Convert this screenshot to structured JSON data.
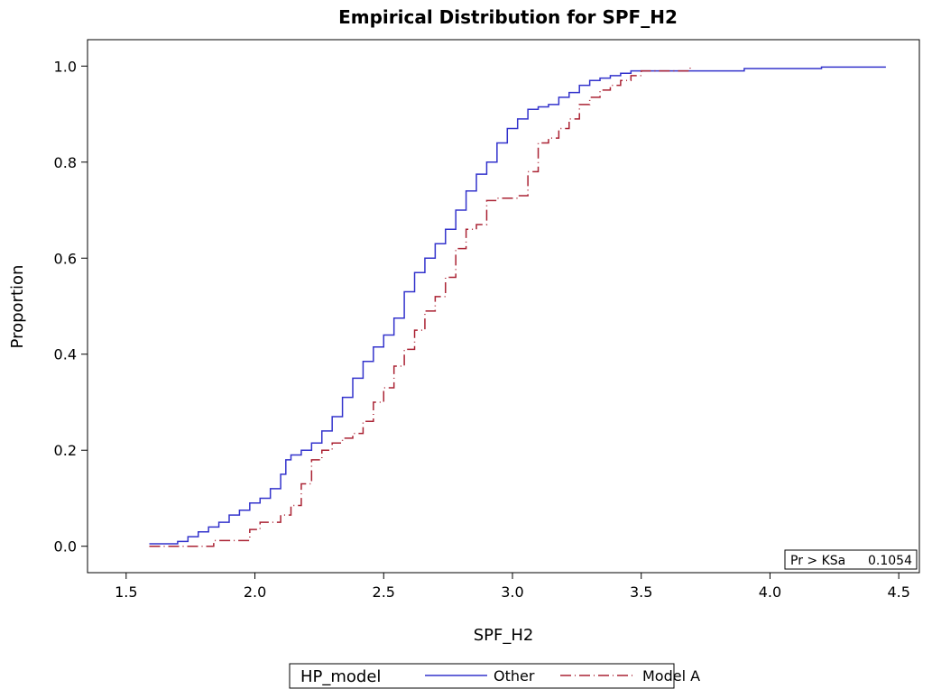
{
  "chart_data": {
    "type": "line",
    "subtype": "step",
    "title": "Empirical Distribution for SPF_H2",
    "xlabel": "SPF_H2",
    "ylabel": "Proportion",
    "xlim": [
      1.35,
      4.58
    ],
    "ylim": [
      -0.055,
      1.055
    ],
    "xticks": [
      1.5,
      2.0,
      2.5,
      3.0,
      3.5,
      4.0,
      4.5
    ],
    "xtick_labels": [
      "1.5",
      "2.0",
      "2.5",
      "3.0",
      "3.5",
      "4.0",
      "4.5"
    ],
    "yticks": [
      0.0,
      0.2,
      0.4,
      0.6,
      0.8,
      1.0
    ],
    "ytick_labels": [
      "0.0",
      "0.2",
      "0.4",
      "0.6",
      "0.8",
      "1.0"
    ],
    "grid": false,
    "legend": {
      "title": "HP_model",
      "placement": "bottom-center",
      "entries": [
        {
          "label": "Other",
          "color": "#3333cc",
          "style": "solid"
        },
        {
          "label": "Model A",
          "color": "#aa2233",
          "style": "dash-dot"
        }
      ]
    },
    "inset": {
      "label": "Pr > KSa",
      "value": "0.1054",
      "placement": "bottom-right"
    },
    "series": [
      {
        "name": "Other",
        "color": "#3333cc",
        "style": "solid",
        "x": [
          1.59,
          1.7,
          1.74,
          1.78,
          1.82,
          1.86,
          1.9,
          1.94,
          1.98,
          2.02,
          2.06,
          2.1,
          2.12,
          2.14,
          2.18,
          2.22,
          2.26,
          2.3,
          2.34,
          2.38,
          2.42,
          2.46,
          2.5,
          2.54,
          2.58,
          2.62,
          2.66,
          2.7,
          2.74,
          2.78,
          2.82,
          2.86,
          2.9,
          2.94,
          2.98,
          3.02,
          3.06,
          3.1,
          3.14,
          3.18,
          3.22,
          3.26,
          3.3,
          3.34,
          3.38,
          3.42,
          3.46,
          3.5,
          3.6,
          3.7,
          3.9,
          4.2,
          4.45
        ],
        "y": [
          0.005,
          0.01,
          0.02,
          0.03,
          0.04,
          0.05,
          0.065,
          0.075,
          0.09,
          0.1,
          0.12,
          0.15,
          0.18,
          0.19,
          0.2,
          0.215,
          0.24,
          0.27,
          0.31,
          0.35,
          0.385,
          0.415,
          0.44,
          0.475,
          0.53,
          0.57,
          0.6,
          0.63,
          0.66,
          0.7,
          0.74,
          0.775,
          0.8,
          0.84,
          0.87,
          0.89,
          0.91,
          0.915,
          0.92,
          0.935,
          0.945,
          0.96,
          0.97,
          0.975,
          0.98,
          0.985,
          0.99,
          0.99,
          0.99,
          0.99,
          0.995,
          0.998,
          0.998
        ]
      },
      {
        "name": "Model A",
        "color": "#aa2233",
        "style": "dash-dot",
        "x": [
          1.59,
          1.84,
          1.98,
          2.02,
          2.1,
          2.14,
          2.18,
          2.22,
          2.26,
          2.3,
          2.34,
          2.38,
          2.42,
          2.46,
          2.5,
          2.54,
          2.58,
          2.62,
          2.66,
          2.7,
          2.74,
          2.78,
          2.82,
          2.86,
          2.9,
          2.94,
          3.02,
          3.06,
          3.1,
          3.14,
          3.18,
          3.22,
          3.26,
          3.3,
          3.34,
          3.38,
          3.42,
          3.46,
          3.5,
          3.6,
          3.69
        ],
        "y": [
          0.0,
          0.012,
          0.035,
          0.05,
          0.065,
          0.085,
          0.13,
          0.18,
          0.2,
          0.215,
          0.225,
          0.235,
          0.26,
          0.3,
          0.33,
          0.375,
          0.41,
          0.45,
          0.49,
          0.52,
          0.56,
          0.62,
          0.66,
          0.67,
          0.72,
          0.725,
          0.73,
          0.78,
          0.84,
          0.85,
          0.87,
          0.89,
          0.92,
          0.935,
          0.95,
          0.96,
          0.97,
          0.98,
          0.99,
          0.99,
          1.0
        ]
      }
    ]
  }
}
